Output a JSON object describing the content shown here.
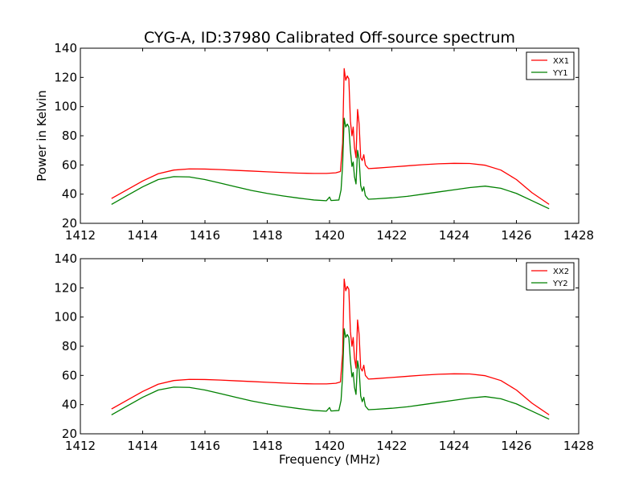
{
  "figure": {
    "title": "CYG-A, ID:37980 Calibrated Off-source spectrum"
  },
  "chart_data": [
    {
      "type": "line",
      "title": "CYG-A, ID:37980 Calibrated Off-source spectrum",
      "xlabel": "",
      "ylabel": "Power in Kelvin",
      "xlim": [
        1412,
        1428
      ],
      "ylim": [
        20,
        140
      ],
      "x_ticks": [
        "1412",
        "1414",
        "1416",
        "1418",
        "1420",
        "1422",
        "1424",
        "1426",
        "1428"
      ],
      "y_ticks": [
        "20",
        "40",
        "60",
        "80",
        "100",
        "120",
        "140"
      ],
      "legend": "top-right",
      "grid": false,
      "series": [
        {
          "name": "XX1",
          "color": "#ff0000",
          "points": [
            [
              1413.0,
              37
            ],
            [
              1413.5,
              43
            ],
            [
              1414.0,
              49
            ],
            [
              1414.5,
              54
            ],
            [
              1415.0,
              56.5
            ],
            [
              1415.5,
              57.3
            ],
            [
              1416.0,
              57.2
            ],
            [
              1416.5,
              56.8
            ],
            [
              1417.0,
              56.3
            ],
            [
              1417.5,
              55.8
            ],
            [
              1418.0,
              55.3
            ],
            [
              1418.5,
              54.8
            ],
            [
              1419.0,
              54.4
            ],
            [
              1419.5,
              54.2
            ],
            [
              1419.9,
              54.2
            ],
            [
              1420.2,
              54.6
            ],
            [
              1420.35,
              55.5
            ],
            [
              1420.42,
              75
            ],
            [
              1420.47,
              126
            ],
            [
              1420.52,
              118
            ],
            [
              1420.57,
              121
            ],
            [
              1420.62,
              119
            ],
            [
              1420.67,
              90
            ],
            [
              1420.72,
              80
            ],
            [
              1420.76,
              86
            ],
            [
              1420.8,
              72
            ],
            [
              1420.85,
              65
            ],
            [
              1420.9,
              98
            ],
            [
              1420.95,
              88
            ],
            [
              1421.0,
              65
            ],
            [
              1421.05,
              63
            ],
            [
              1421.1,
              67
            ],
            [
              1421.15,
              60
            ],
            [
              1421.25,
              57.5
            ],
            [
              1421.5,
              57.8
            ],
            [
              1422.0,
              58.6
            ],
            [
              1422.5,
              59.4
            ],
            [
              1423.0,
              60.2
            ],
            [
              1423.5,
              60.8
            ],
            [
              1424.0,
              61.1
            ],
            [
              1424.5,
              61
            ],
            [
              1425.0,
              59.8
            ],
            [
              1425.5,
              56.5
            ],
            [
              1426.0,
              50
            ],
            [
              1426.5,
              41
            ],
            [
              1427.05,
              33
            ]
          ]
        },
        {
          "name": "YY1",
          "color": "#008000",
          "points": [
            [
              1413.0,
              33
            ],
            [
              1413.5,
              39
            ],
            [
              1414.0,
              45
            ],
            [
              1414.5,
              50
            ],
            [
              1415.0,
              52
            ],
            [
              1415.5,
              51.8
            ],
            [
              1416.0,
              50
            ],
            [
              1416.5,
              47.5
            ],
            [
              1417.0,
              45
            ],
            [
              1417.5,
              42.5
            ],
            [
              1418.0,
              40.5
            ],
            [
              1418.5,
              38.8
            ],
            [
              1419.0,
              37.3
            ],
            [
              1419.5,
              36
            ],
            [
              1419.9,
              35.5
            ],
            [
              1420.0,
              38
            ],
            [
              1420.05,
              35.6
            ],
            [
              1420.3,
              36
            ],
            [
              1420.37,
              43
            ],
            [
              1420.42,
              60
            ],
            [
              1420.47,
              92
            ],
            [
              1420.52,
              86
            ],
            [
              1420.57,
              88
            ],
            [
              1420.62,
              86
            ],
            [
              1420.67,
              70
            ],
            [
              1420.72,
              59
            ],
            [
              1420.76,
              62
            ],
            [
              1420.8,
              52
            ],
            [
              1420.85,
              47
            ],
            [
              1420.9,
              70
            ],
            [
              1420.95,
              64
            ],
            [
              1421.0,
              46
            ],
            [
              1421.05,
              42
            ],
            [
              1421.1,
              45
            ],
            [
              1421.15,
              39
            ],
            [
              1421.25,
              36.5
            ],
            [
              1421.5,
              36.8
            ],
            [
              1422.0,
              37.5
            ],
            [
              1422.5,
              38.5
            ],
            [
              1423.0,
              40
            ],
            [
              1423.5,
              41.5
            ],
            [
              1424.0,
              43
            ],
            [
              1424.5,
              44.5
            ],
            [
              1425.0,
              45.5
            ],
            [
              1425.5,
              44
            ],
            [
              1426.0,
              40.5
            ],
            [
              1426.5,
              35.5
            ],
            [
              1427.05,
              30
            ]
          ]
        }
      ]
    },
    {
      "type": "line",
      "title": "",
      "xlabel": "Frequency (MHz)",
      "ylabel": "",
      "xlim": [
        1412,
        1428
      ],
      "ylim": [
        20,
        140
      ],
      "x_ticks": [
        "1412",
        "1414",
        "1416",
        "1418",
        "1420",
        "1422",
        "1424",
        "1426",
        "1428"
      ],
      "y_ticks": [
        "20",
        "40",
        "60",
        "80",
        "100",
        "120",
        "140"
      ],
      "legend": "top-right",
      "grid": false,
      "series": [
        {
          "name": "XX2",
          "color": "#ff0000",
          "points": [
            [
              1413.0,
              37
            ],
            [
              1413.5,
              43
            ],
            [
              1414.0,
              49
            ],
            [
              1414.5,
              54
            ],
            [
              1415.0,
              56.5
            ],
            [
              1415.5,
              57.3
            ],
            [
              1416.0,
              57.2
            ],
            [
              1416.5,
              56.8
            ],
            [
              1417.0,
              56.3
            ],
            [
              1417.5,
              55.8
            ],
            [
              1418.0,
              55.3
            ],
            [
              1418.5,
              54.8
            ],
            [
              1419.0,
              54.4
            ],
            [
              1419.5,
              54.2
            ],
            [
              1419.9,
              54.2
            ],
            [
              1420.2,
              54.6
            ],
            [
              1420.35,
              55.5
            ],
            [
              1420.42,
              75
            ],
            [
              1420.47,
              126
            ],
            [
              1420.52,
              118
            ],
            [
              1420.57,
              121
            ],
            [
              1420.62,
              119
            ],
            [
              1420.67,
              90
            ],
            [
              1420.72,
              80
            ],
            [
              1420.76,
              86
            ],
            [
              1420.8,
              72
            ],
            [
              1420.85,
              65
            ],
            [
              1420.9,
              98
            ],
            [
              1420.95,
              88
            ],
            [
              1421.0,
              65
            ],
            [
              1421.05,
              63
            ],
            [
              1421.1,
              67
            ],
            [
              1421.15,
              60
            ],
            [
              1421.25,
              57.5
            ],
            [
              1421.5,
              57.8
            ],
            [
              1422.0,
              58.6
            ],
            [
              1422.5,
              59.4
            ],
            [
              1423.0,
              60.2
            ],
            [
              1423.5,
              60.8
            ],
            [
              1424.0,
              61.1
            ],
            [
              1424.5,
              61
            ],
            [
              1425.0,
              59.8
            ],
            [
              1425.5,
              56.5
            ],
            [
              1426.0,
              50
            ],
            [
              1426.5,
              41
            ],
            [
              1427.05,
              33
            ]
          ]
        },
        {
          "name": "YY2",
          "color": "#008000",
          "points": [
            [
              1413.0,
              33
            ],
            [
              1413.5,
              39
            ],
            [
              1414.0,
              45
            ],
            [
              1414.5,
              50
            ],
            [
              1415.0,
              52
            ],
            [
              1415.5,
              51.8
            ],
            [
              1416.0,
              50
            ],
            [
              1416.5,
              47.5
            ],
            [
              1417.0,
              45
            ],
            [
              1417.5,
              42.5
            ],
            [
              1418.0,
              40.5
            ],
            [
              1418.5,
              38.8
            ],
            [
              1419.0,
              37.3
            ],
            [
              1419.5,
              36
            ],
            [
              1419.9,
              35.5
            ],
            [
              1420.0,
              38
            ],
            [
              1420.05,
              35.6
            ],
            [
              1420.3,
              36
            ],
            [
              1420.37,
              43
            ],
            [
              1420.42,
              60
            ],
            [
              1420.47,
              92
            ],
            [
              1420.52,
              86
            ],
            [
              1420.57,
              88
            ],
            [
              1420.62,
              86
            ],
            [
              1420.67,
              70
            ],
            [
              1420.72,
              59
            ],
            [
              1420.76,
              62
            ],
            [
              1420.8,
              52
            ],
            [
              1420.85,
              47
            ],
            [
              1420.9,
              70
            ],
            [
              1420.95,
              64
            ],
            [
              1421.0,
              46
            ],
            [
              1421.05,
              42
            ],
            [
              1421.1,
              45
            ],
            [
              1421.15,
              39
            ],
            [
              1421.25,
              36.5
            ],
            [
              1421.5,
              36.8
            ],
            [
              1422.0,
              37.5
            ],
            [
              1422.5,
              38.5
            ],
            [
              1423.0,
              40
            ],
            [
              1423.5,
              41.5
            ],
            [
              1424.0,
              43
            ],
            [
              1424.5,
              44.5
            ],
            [
              1425.0,
              45.5
            ],
            [
              1425.5,
              44
            ],
            [
              1426.0,
              40.5
            ],
            [
              1426.5,
              35.5
            ],
            [
              1427.05,
              30
            ]
          ]
        }
      ]
    }
  ]
}
